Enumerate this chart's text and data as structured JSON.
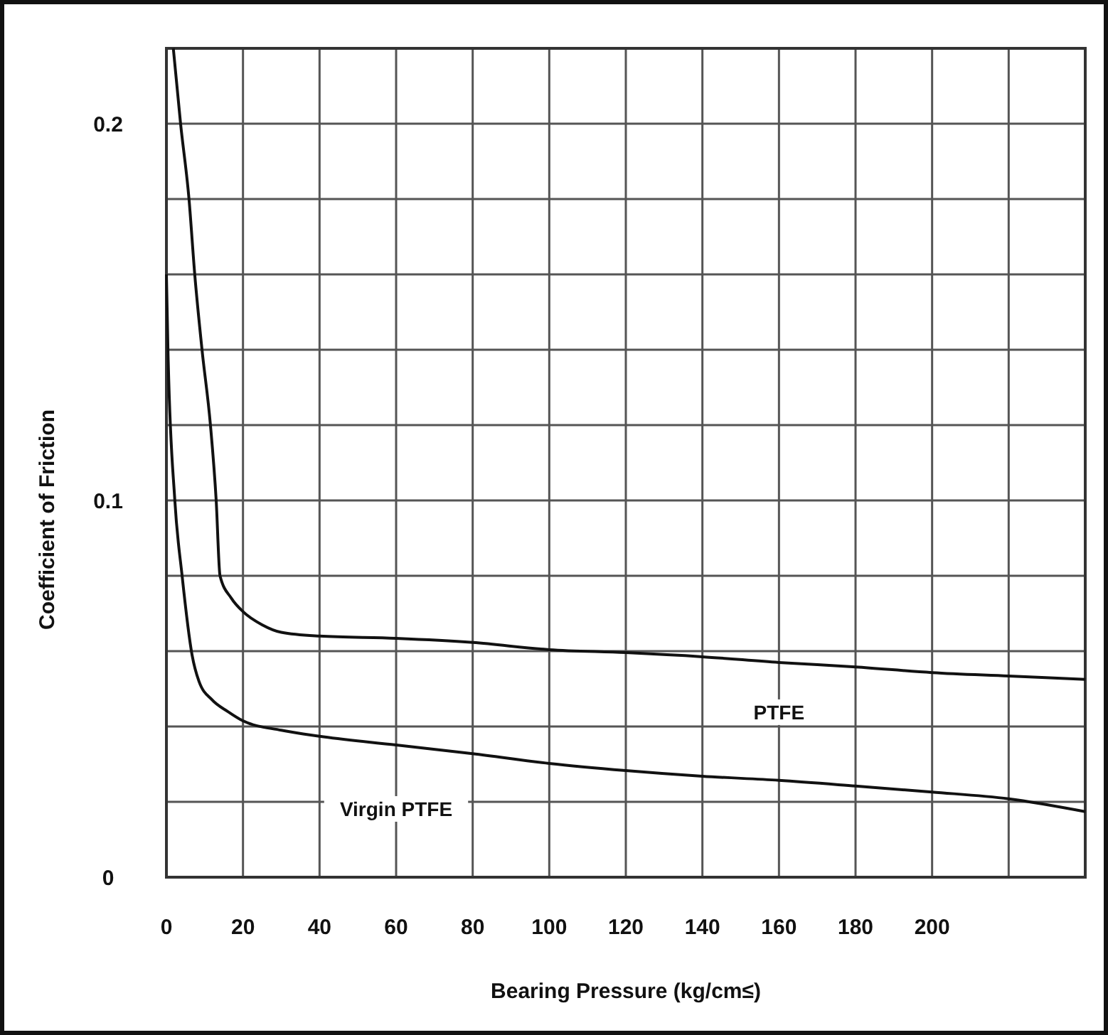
{
  "chart_data": {
    "type": "line",
    "xlabel": "Bearing Pressure (kg/cm≤)",
    "ylabel": "Coefficient of Friction",
    "xlim": [
      0,
      240
    ],
    "ylim": [
      0,
      0.22
    ],
    "xticks": [
      0,
      20,
      40,
      60,
      80,
      100,
      120,
      140,
      160,
      180,
      200,
      {
        "value": 220,
        "label": null
      },
      {
        "value": 240,
        "label": null
      }
    ],
    "yticks": [
      0,
      {
        "value": 0.02,
        "label": null
      },
      {
        "value": 0.04,
        "label": null
      },
      {
        "value": 0.06,
        "label": null
      },
      {
        "value": 0.08,
        "label": null
      },
      0.1,
      {
        "value": 0.12,
        "label": null
      },
      {
        "value": 0.14,
        "label": null
      },
      {
        "value": 0.16,
        "label": null
      },
      {
        "value": 0.18,
        "label": null
      },
      0.2,
      {
        "value": 0.22,
        "label": null
      }
    ],
    "grid": true,
    "marker": "none",
    "line_style": "solid",
    "series": [
      {
        "name": "PTFE",
        "color": "#111111",
        "x": [
          1.8,
          3.7,
          5.9,
          7.4,
          9.3,
          11.5,
          13,
          14,
          17,
          20,
          25,
          30,
          40,
          60,
          80,
          100,
          120,
          140,
          160,
          180,
          200,
          220,
          240
        ],
        "values": [
          0.22,
          0.2,
          0.18,
          0.16,
          0.14,
          0.12,
          0.1,
          0.08,
          0.074,
          0.0705,
          0.067,
          0.065,
          0.064,
          0.0634,
          0.0623,
          0.0604,
          0.0596,
          0.0585,
          0.057,
          0.0558,
          0.0543,
          0.0534,
          0.0525
        ]
      },
      {
        "name": "Virgin PTFE",
        "color": "#111111",
        "x": [
          0,
          0.4,
          2.2,
          4.1,
          6.7,
          8.5,
          12,
          16,
          20,
          30,
          40,
          60,
          80,
          100,
          120,
          140,
          160,
          180,
          200,
          220,
          240
        ],
        "values": [
          0.16,
          0.14,
          0.1,
          0.08,
          0.059,
          0.052,
          0.047,
          0.044,
          0.0415,
          0.039,
          0.0374,
          0.0351,
          0.0328,
          0.0302,
          0.0283,
          0.0268,
          0.0257,
          0.0242,
          0.0226,
          0.0208,
          0.0174
        ]
      }
    ]
  }
}
